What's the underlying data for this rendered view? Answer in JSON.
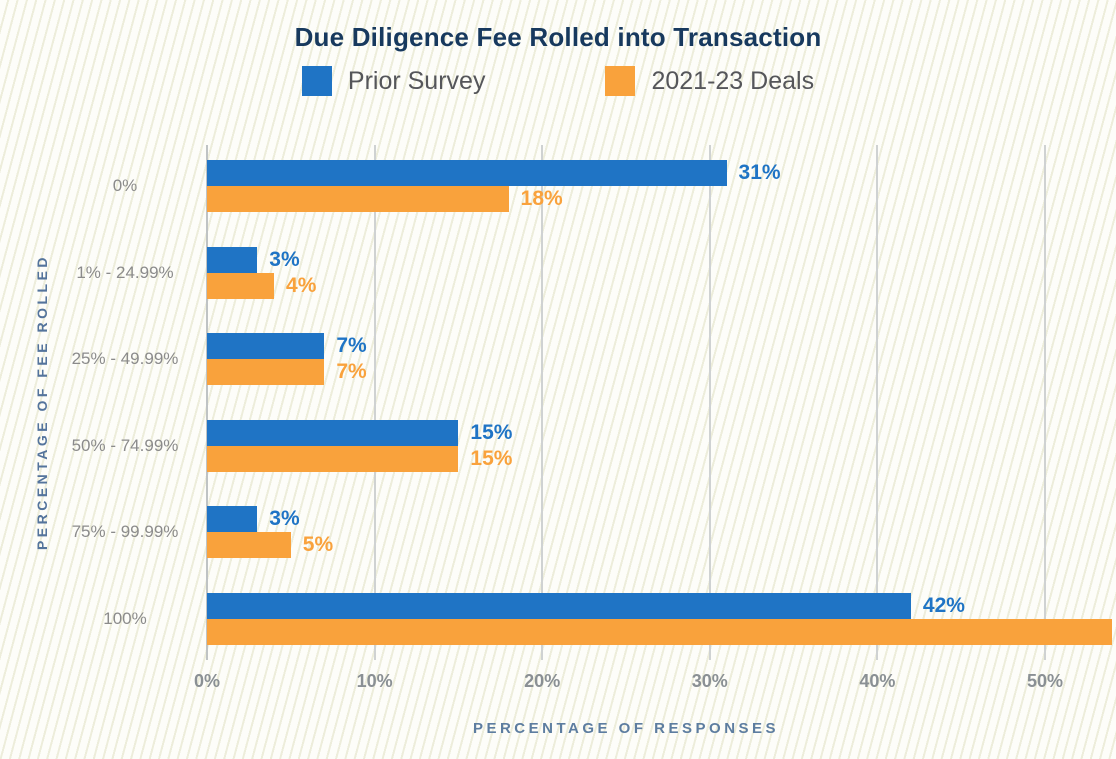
{
  "chart_data": {
    "type": "bar",
    "orientation": "horizontal",
    "title": "Due Diligence Fee Rolled into Transaction",
    "xlabel": "PERCENTAGE OF RESPONSES",
    "ylabel": "PERCENTAGE OF FEE ROLLED",
    "categories": [
      "0%",
      "1% - 24.99%",
      "25% - 49.99%",
      "50% - 74.99%",
      "75% - 99.99%",
      "100%"
    ],
    "series": [
      {
        "name": "Prior Survey",
        "color": "#1F74C5",
        "values": [
          31,
          3,
          7,
          15,
          3,
          42
        ],
        "value_labels": [
          "31%",
          "3%",
          "7%",
          "15%",
          "3%",
          "42%"
        ]
      },
      {
        "name": "2021-23 Deals",
        "color": "#F9A23C",
        "values": [
          18,
          4,
          7,
          15,
          5,
          54
        ],
        "value_labels": [
          "18%",
          "4%",
          "7%",
          "15%",
          "5%",
          ""
        ]
      }
    ],
    "x_ticks": [
      "0%",
      "10%",
      "20%",
      "30%",
      "40%",
      "50%"
    ],
    "xlim": [
      0,
      54.2
    ],
    "grid": "vertical-only",
    "legend_position": "top-center",
    "notes": "The 2021-23 Deals bar for the 100% category extends past the right edge of the image (≈54% as drawn) and shows no value label."
  },
  "colors": {
    "title_text": "#17395e",
    "axis_title_text": "#5d7da0",
    "category_text": "#8b8b8b",
    "tick_text": "#8a9094",
    "legend_text": "#55565a",
    "gridline": "#cfd2d2",
    "background_stripe": "#ededdb",
    "background_base": "#fdfdf9"
  }
}
